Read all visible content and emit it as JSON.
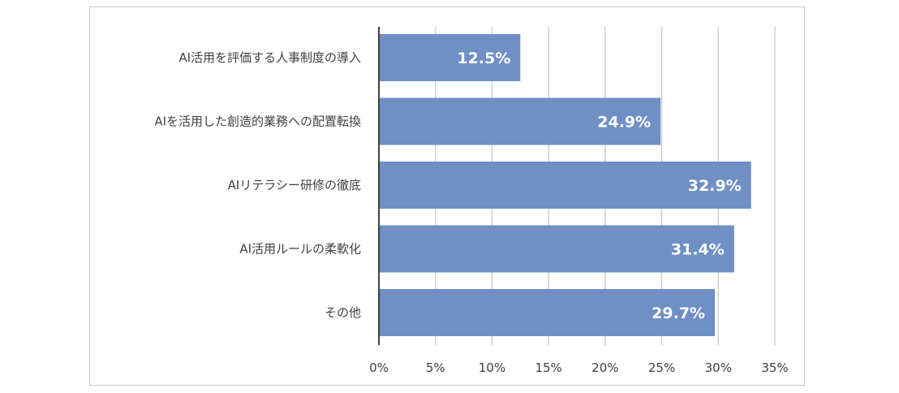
{
  "chart_data": {
    "type": "bar",
    "orientation": "horizontal",
    "categories": [
      "AI活用を評価する人事制度の導入",
      "AIを活用した創造的業務への配置転換",
      "AIリテラシー研修の徹底",
      "AI活用ルールの柔軟化",
      "その他"
    ],
    "values": [
      12.5,
      24.9,
      32.9,
      31.4,
      29.7
    ],
    "data_labels": [
      "12.5%",
      "24.9%",
      "32.9%",
      "31.4%",
      "29.7%"
    ],
    "xlim": [
      0,
      35
    ],
    "xticks": [
      0,
      5,
      10,
      15,
      20,
      25,
      30,
      35
    ],
    "xtick_labels": [
      "0%",
      "5%",
      "10%",
      "15%",
      "20%",
      "25%",
      "30%",
      "35%"
    ],
    "title": "",
    "xlabel": "",
    "ylabel": "",
    "grid": "vertical",
    "legend": "none",
    "bar_color": "#6f8fc5",
    "label_color": "#ffffff"
  }
}
